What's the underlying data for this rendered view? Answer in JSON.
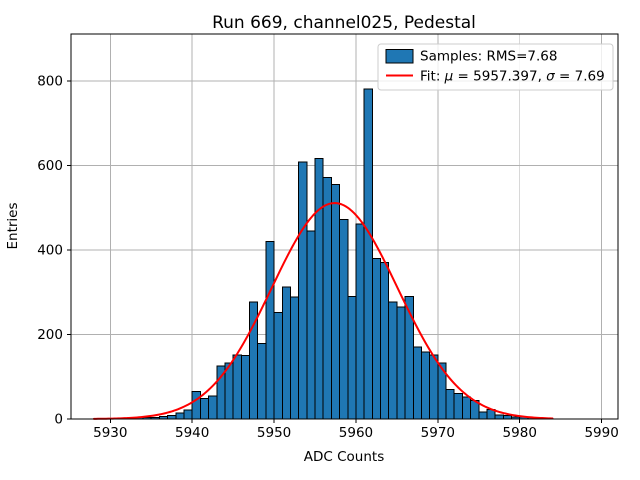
{
  "chart_data": {
    "type": "bar",
    "title": "Run 669, channel025, Pedestal",
    "xlabel": "ADC Counts",
    "ylabel": "Entries",
    "xlim": [
      5925.2,
      5992.0
    ],
    "ylim": [
      0,
      911
    ],
    "xticks": [
      5930,
      5940,
      5950,
      5960,
      5970,
      5980,
      5990
    ],
    "yticks": [
      0,
      200,
      400,
      600,
      800
    ],
    "grid": true,
    "grid_color": "#b0b0b0",
    "background_color": "#ffffff",
    "legend_position": "upper right",
    "legend_entries": [
      "Samples: RMS=7.68",
      "Fit: μ = 5957.397, σ = 7.69"
    ],
    "series": [
      {
        "name": "Samples: RMS=7.68",
        "kind": "histogram",
        "color": "#1f77b4",
        "edge_color": "#000000",
        "bin_start": 5929,
        "bin_width": 1,
        "counts": [
          1,
          1,
          2,
          2,
          3,
          3,
          4,
          6,
          8,
          14,
          21,
          65,
          48,
          55,
          125,
          133,
          152,
          150,
          277,
          179,
          420,
          252,
          312,
          289,
          608,
          445,
          616,
          571,
          555,
          472,
          290,
          461,
          781,
          380,
          370,
          277,
          265,
          290,
          170,
          158,
          152,
          133,
          70,
          60,
          52,
          44,
          17,
          22,
          10,
          8,
          5,
          5,
          3,
          2,
          2
        ]
      },
      {
        "name": "Fit: μ = 5957.397, σ = 7.69",
        "kind": "gaussian-fit",
        "color": "#ff0000",
        "mu": 5957.397,
        "sigma": 7.69,
        "amplitude": 511,
        "x_range": [
          5928,
          5984
        ]
      }
    ],
    "stats": {
      "rms": 7.68,
      "mu": 5957.397,
      "sigma": 7.69
    }
  }
}
